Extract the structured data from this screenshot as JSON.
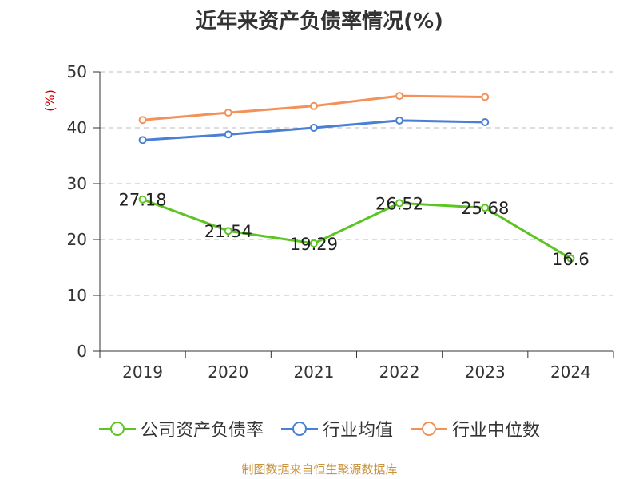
{
  "chart_data": {
    "type": "line",
    "title": "近年来资产负债率情况(%)",
    "ylabel": "(%)",
    "xlabel": "",
    "categories": [
      "2019",
      "2020",
      "2021",
      "2022",
      "2023",
      "2024"
    ],
    "ylim": [
      0,
      50
    ],
    "yticks": [
      0,
      10,
      20,
      30,
      40,
      50
    ],
    "grid": true,
    "legend_position": "bottom",
    "series": [
      {
        "name": "公司资产负债率",
        "color": "#5ec424",
        "values": [
          27.18,
          21.54,
          19.29,
          26.52,
          25.68,
          16.6
        ],
        "labels": [
          "27.18",
          "21.54",
          "19.29",
          "26.52",
          "25.68",
          "16.6"
        ]
      },
      {
        "name": "行业均值",
        "color": "#4a7fd6",
        "values": [
          37.8,
          38.8,
          40.0,
          41.3,
          41.0,
          null
        ]
      },
      {
        "name": "行业中位数",
        "color": "#f39158",
        "values": [
          41.4,
          42.7,
          43.9,
          45.7,
          45.5,
          null
        ]
      }
    ]
  },
  "source": "制图数据来自恒生聚源数据库"
}
